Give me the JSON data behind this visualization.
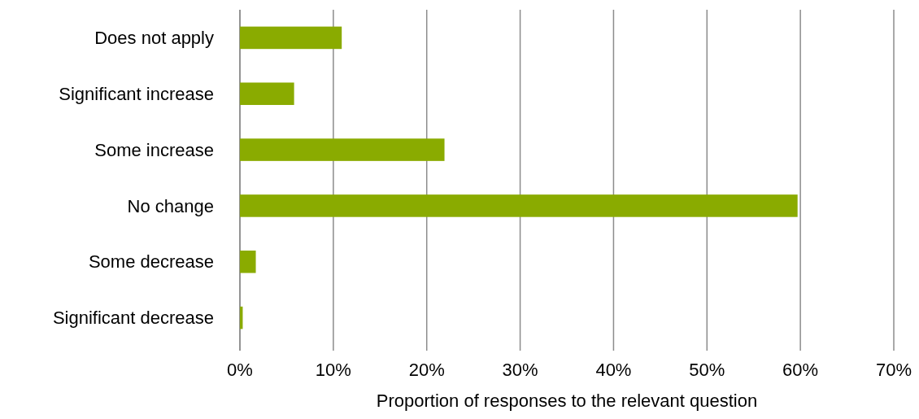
{
  "chart_data": {
    "type": "bar",
    "orientation": "horizontal",
    "xlabel": "Proportion of responses to the relevant question",
    "categories": [
      "Does not apply",
      "Significant increase",
      "Some increase",
      "No change",
      "Some decrease",
      "Significant decrease"
    ],
    "values": [
      10.9,
      5.8,
      21.9,
      59.7,
      1.7,
      0.3
    ],
    "color": "#8aab00",
    "xlim": [
      0,
      70
    ],
    "xticks": [
      {
        "value": 0,
        "label": "0%"
      },
      {
        "value": 10,
        "label": "10%"
      },
      {
        "value": 20,
        "label": "20%"
      },
      {
        "value": 30,
        "label": "30%"
      },
      {
        "value": 40,
        "label": "40%"
      },
      {
        "value": 50,
        "label": "50%"
      },
      {
        "value": 60,
        "label": "60%"
      },
      {
        "value": 70,
        "label": "70%"
      }
    ],
    "grid": "x"
  }
}
